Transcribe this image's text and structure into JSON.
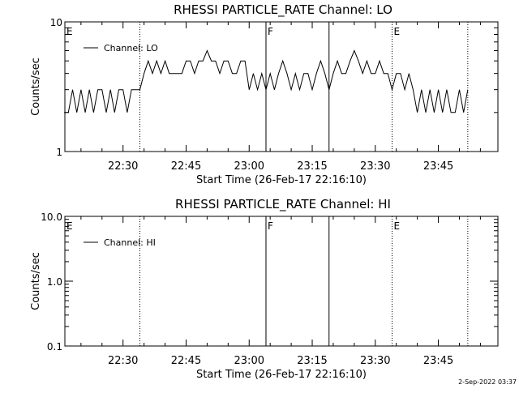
{
  "footer": {
    "date": "2-Sep-2022 03:37"
  },
  "chart_data": [
    {
      "type": "line",
      "title": "RHESSI PARTICLE_RATE Channel: LO",
      "xlabel": "Start Time (26-Feb-17 22:16:10)",
      "ylabel": "Counts/sec",
      "yscale": "log",
      "ylim": [
        1,
        10
      ],
      "xlim_minutes": [
        0,
        103
      ],
      "yticks": [
        1,
        10
      ],
      "ytick_labels": [
        "1",
        "10"
      ],
      "xticks": [
        "22:30",
        "22:45",
        "23:00",
        "23:15",
        "23:30",
        "23:45"
      ],
      "legend": {
        "entries": [
          "Channel: LO"
        ],
        "placement": "top-left"
      },
      "markers": [
        {
          "label": "E",
          "time": "22:16:10",
          "style": "none"
        },
        {
          "label": "",
          "time": "22:34",
          "style": "dotted"
        },
        {
          "label": "F",
          "time": "23:04",
          "style": "solid"
        },
        {
          "label": "",
          "time": "23:19",
          "style": "solid"
        },
        {
          "label": "E",
          "time": "23:34",
          "style": "dotted"
        },
        {
          "label": "",
          "time": "23:52",
          "style": "dotted"
        }
      ],
      "series": [
        {
          "name": "Channel: LO",
          "x": [
            "22:16",
            "22:17",
            "22:18",
            "22:19",
            "22:20",
            "22:21",
            "22:22",
            "22:23",
            "22:24",
            "22:25",
            "22:26",
            "22:27",
            "22:28",
            "22:29",
            "22:30",
            "22:31",
            "22:32",
            "22:33",
            "22:34",
            "22:35",
            "22:36",
            "22:37",
            "22:38",
            "22:39",
            "22:40",
            "22:41",
            "22:42",
            "22:43",
            "22:44",
            "22:45",
            "22:46",
            "22:47",
            "22:48",
            "22:49",
            "22:50",
            "22:51",
            "22:52",
            "22:53",
            "22:54",
            "22:55",
            "22:56",
            "22:57",
            "22:58",
            "22:59",
            "23:00",
            "23:01",
            "23:02",
            "23:03",
            "23:04",
            "23:05",
            "23:06",
            "23:07",
            "23:08",
            "23:09",
            "23:10",
            "23:11",
            "23:12",
            "23:13",
            "23:14",
            "23:15",
            "23:16",
            "23:17",
            "23:18",
            "23:19",
            "23:20",
            "23:21",
            "23:22",
            "23:23",
            "23:24",
            "23:25",
            "23:26",
            "23:27",
            "23:28",
            "23:29",
            "23:30",
            "23:31",
            "23:32",
            "23:33",
            "23:34",
            "23:35",
            "23:36",
            "23:37",
            "23:38",
            "23:39",
            "23:40",
            "23:41",
            "23:42",
            "23:43",
            "23:44",
            "23:45",
            "23:46",
            "23:47",
            "23:48",
            "23:49",
            "23:50",
            "23:51",
            "23:52"
          ],
          "y": [
            2,
            2,
            3,
            2,
            3,
            2,
            3,
            2,
            3,
            3,
            2,
            3,
            2,
            3,
            3,
            2,
            3,
            3,
            3,
            4,
            5,
            4,
            5,
            4,
            5,
            4,
            4,
            4,
            4,
            5,
            5,
            4,
            5,
            5,
            6,
            5,
            5,
            4,
            5,
            5,
            4,
            4,
            5,
            5,
            3,
            4,
            3,
            4,
            3,
            4,
            3,
            4,
            5,
            4,
            3,
            4,
            3,
            4,
            4,
            3,
            4,
            5,
            4,
            3,
            4,
            5,
            4,
            4,
            5,
            6,
            5,
            4,
            5,
            4,
            4,
            5,
            4,
            4,
            3,
            4,
            4,
            3,
            4,
            3,
            2,
            3,
            2,
            3,
            2,
            3,
            2,
            3,
            2,
            2,
            3,
            2,
            3
          ]
        }
      ]
    },
    {
      "type": "line",
      "title": "RHESSI PARTICLE_RATE Channel: HI",
      "xlabel": "Start Time (26-Feb-17 22:16:10)",
      "ylabel": "Counts/sec",
      "yscale": "log",
      "ylim": [
        0.1,
        10
      ],
      "xlim_minutes": [
        0,
        103
      ],
      "yticks": [
        0.1,
        1,
        10
      ],
      "ytick_labels": [
        "0.1",
        "1.0",
        "10.0"
      ],
      "xticks": [
        "22:30",
        "22:45",
        "23:00",
        "23:15",
        "23:30",
        "23:45"
      ],
      "legend": {
        "entries": [
          "Channel: HI"
        ],
        "placement": "top-left"
      },
      "markers": [
        {
          "label": "E",
          "time": "22:16:10",
          "style": "none"
        },
        {
          "label": "",
          "time": "22:34",
          "style": "dotted"
        },
        {
          "label": "F",
          "time": "23:04",
          "style": "solid"
        },
        {
          "label": "",
          "time": "23:19",
          "style": "solid"
        },
        {
          "label": "E",
          "time": "23:34",
          "style": "dotted"
        },
        {
          "label": "",
          "time": "23:52",
          "style": "dotted"
        }
      ],
      "series": [
        {
          "name": "Channel: HI",
          "x": [],
          "y": []
        }
      ]
    }
  ]
}
